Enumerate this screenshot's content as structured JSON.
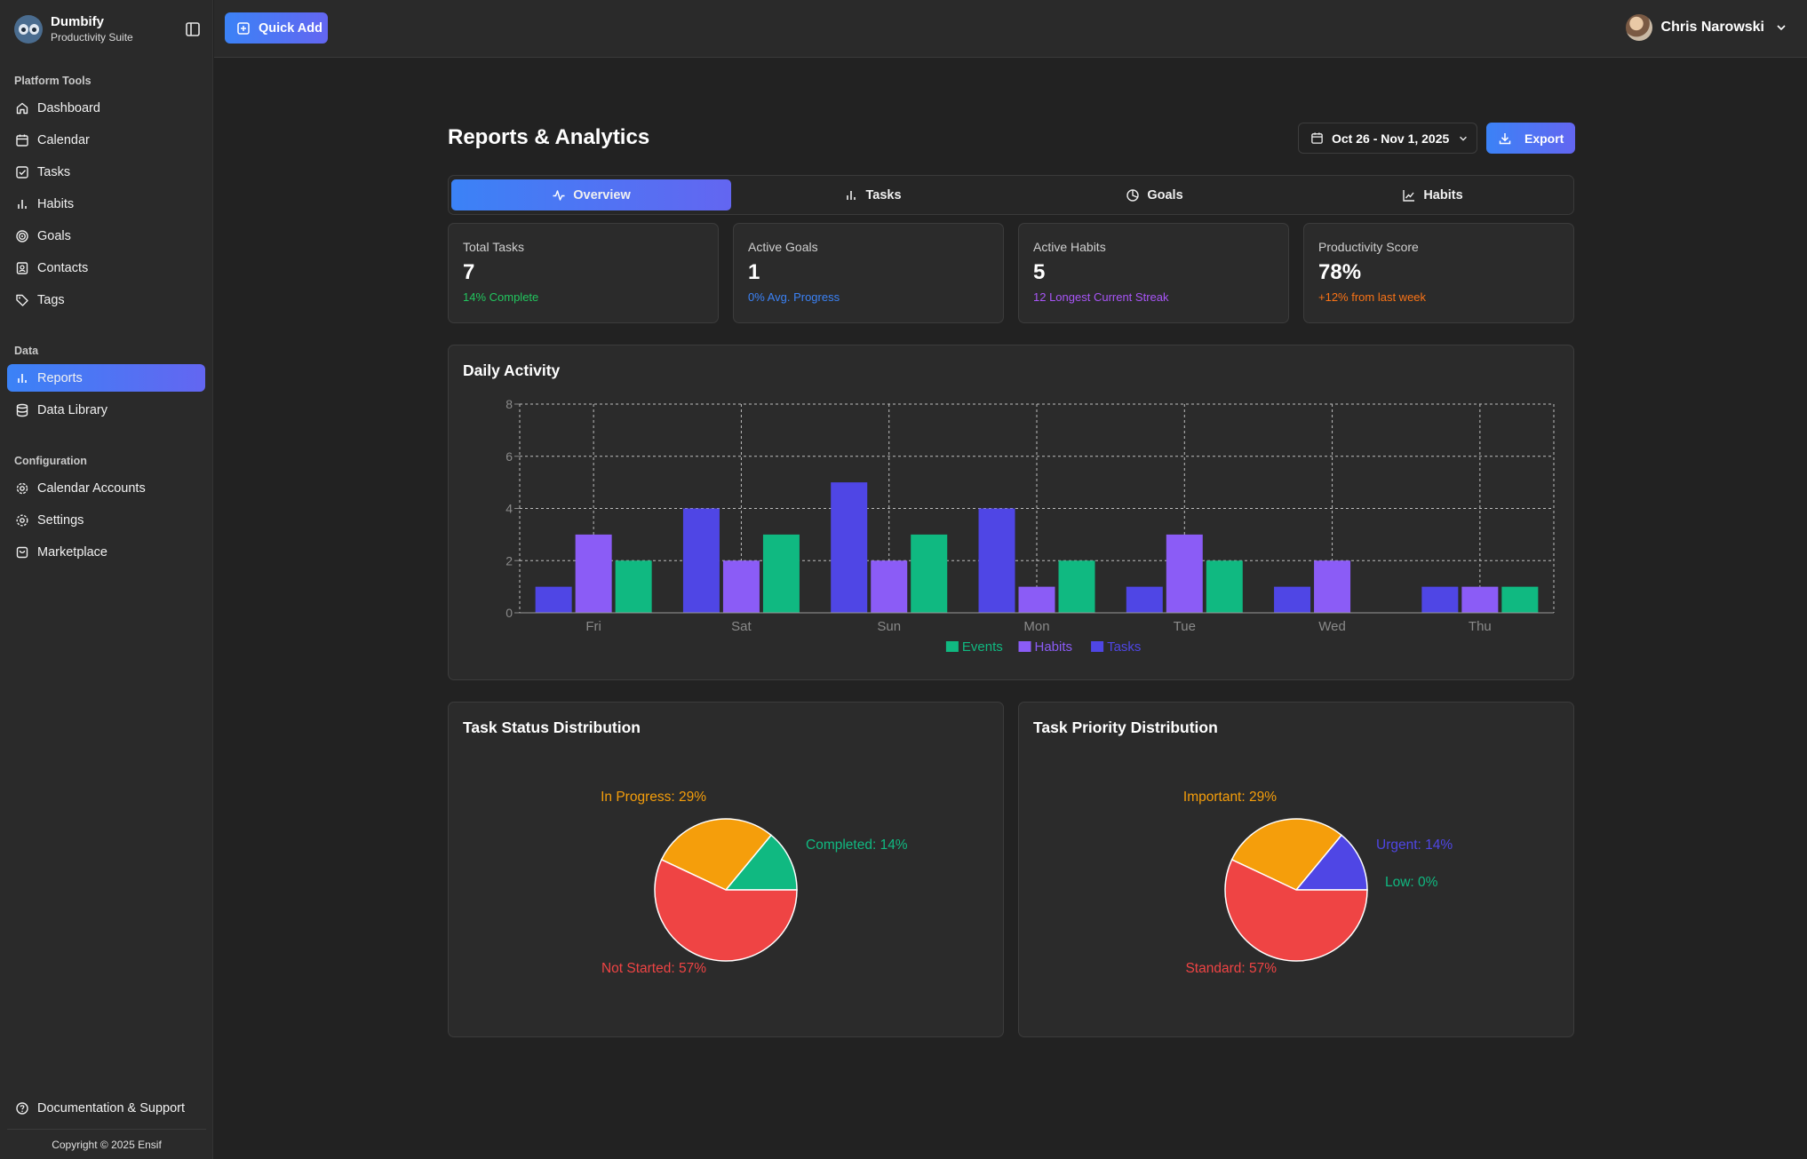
{
  "brand": {
    "name": "Dumbify",
    "subtitle": "Productivity Suite"
  },
  "sidebar": {
    "sections": [
      {
        "label": "Platform Tools",
        "items": [
          {
            "label": "Dashboard",
            "icon": "home-icon"
          },
          {
            "label": "Calendar",
            "icon": "calendar-icon"
          },
          {
            "label": "Tasks",
            "icon": "check-square-icon"
          },
          {
            "label": "Habits",
            "icon": "bar-chart-icon"
          },
          {
            "label": "Goals",
            "icon": "target-icon"
          },
          {
            "label": "Contacts",
            "icon": "contact-icon"
          },
          {
            "label": "Tags",
            "icon": "tag-icon"
          }
        ]
      },
      {
        "label": "Data",
        "items": [
          {
            "label": "Reports",
            "icon": "bar-chart-icon",
            "active": true
          },
          {
            "label": "Data Library",
            "icon": "database-icon"
          }
        ]
      },
      {
        "label": "Configuration",
        "items": [
          {
            "label": "Calendar Accounts",
            "icon": "cog-icon"
          },
          {
            "label": "Settings",
            "icon": "gear-icon"
          },
          {
            "label": "Marketplace",
            "icon": "store-icon"
          }
        ]
      }
    ],
    "footer_link": "Documentation & Support",
    "copyright": "Copyright © 2025 Ensif"
  },
  "header": {
    "quick_add": "Quick Add",
    "user_name": "Chris Narowski"
  },
  "page": {
    "title": "Reports & Analytics",
    "date_range": "Oct 26 - Nov 1, 2025",
    "export": "Export"
  },
  "tabs": [
    {
      "label": "Overview",
      "icon": "activity-icon",
      "active": true
    },
    {
      "label": "Tasks",
      "icon": "bar-chart-icon"
    },
    {
      "label": "Goals",
      "icon": "pie-chart-icon"
    },
    {
      "label": "Habits",
      "icon": "line-chart-icon"
    }
  ],
  "stats": [
    {
      "label": "Total Tasks",
      "value": "7",
      "note": "14% Complete",
      "note_color": "#22c55e"
    },
    {
      "label": "Active Goals",
      "value": "1",
      "note": "0% Avg. Progress",
      "note_color": "#3b82f6"
    },
    {
      "label": "Active Habits",
      "value": "5",
      "note": "12 Longest Current Streak",
      "note_color": "#a855f7"
    },
    {
      "label": "Productivity Score",
      "value": "78%",
      "note": "+12% from last week",
      "note_color": "#f97316"
    }
  ],
  "colors": {
    "tasks": "#4f46e5",
    "habits": "#8b5cf6",
    "events": "#10b981",
    "orange": "#f59e0b",
    "red": "#ef4444"
  },
  "chart_data": [
    {
      "type": "bar",
      "title": "Daily Activity",
      "categories": [
        "Fri",
        "Sat",
        "Sun",
        "Mon",
        "Tue",
        "Wed",
        "Thu"
      ],
      "series": [
        {
          "name": "Tasks",
          "values": [
            1,
            4,
            5,
            4,
            1,
            1,
            1
          ],
          "color": "#4f46e5"
        },
        {
          "name": "Habits",
          "values": [
            3,
            2,
            2,
            1,
            3,
            2,
            1
          ],
          "color": "#8b5cf6"
        },
        {
          "name": "Events",
          "values": [
            2,
            3,
            3,
            2,
            2,
            0,
            1
          ],
          "color": "#10b981"
        }
      ],
      "legend_order": [
        "Events",
        "Habits",
        "Tasks"
      ],
      "ylim": [
        0,
        8
      ],
      "yticks": [
        0,
        2,
        4,
        6,
        8
      ],
      "grid": true,
      "legend": "bottom-center"
    },
    {
      "type": "pie",
      "title": "Task Status Distribution",
      "slices": [
        {
          "label": "Completed",
          "value": 14,
          "text": "Completed: 14%",
          "color": "#10b981"
        },
        {
          "label": "In Progress",
          "value": 29,
          "text": "In Progress: 29%",
          "color": "#f59e0b"
        },
        {
          "label": "Not Started",
          "value": 57,
          "text": "Not Started: 57%",
          "color": "#ef4444"
        }
      ]
    },
    {
      "type": "pie",
      "title": "Task Priority Distribution",
      "slices": [
        {
          "label": "Low",
          "value": 0,
          "text": "Low: 0%",
          "color": "#10b981"
        },
        {
          "label": "Urgent",
          "value": 14,
          "text": "Urgent: 14%",
          "color": "#4f46e5"
        },
        {
          "label": "Important",
          "value": 29,
          "text": "Important: 29%",
          "color": "#f59e0b"
        },
        {
          "label": "Standard",
          "value": 57,
          "text": "Standard: 57%",
          "color": "#ef4444"
        }
      ]
    }
  ]
}
